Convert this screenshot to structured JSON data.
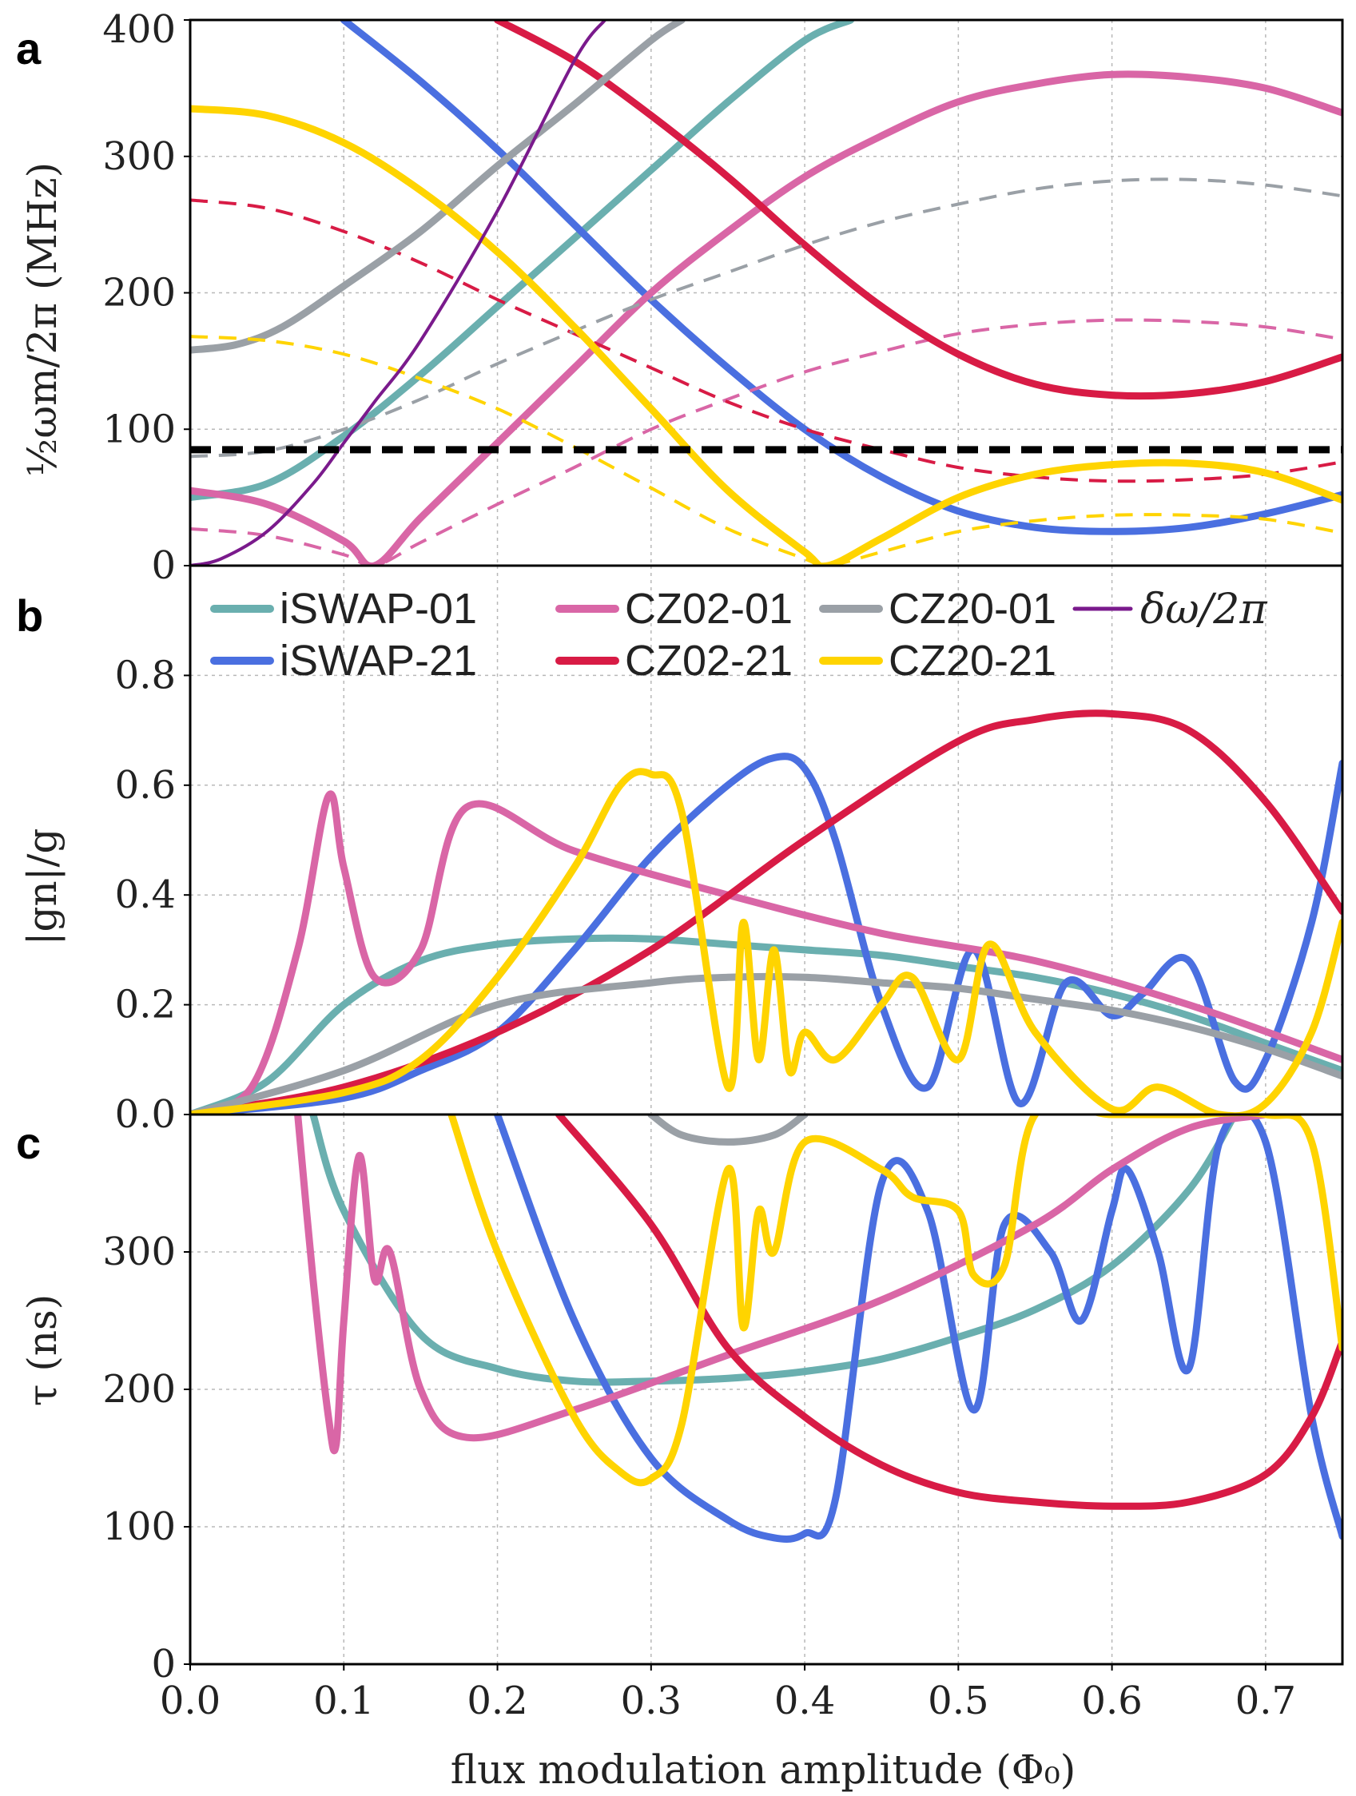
{
  "figure": {
    "xlabel": "flux modulation amplitude (Φ₀)",
    "x_ticks": [
      "0.0",
      "0.1",
      "0.2",
      "0.3",
      "0.4",
      "0.5",
      "0.6",
      "0.7"
    ]
  },
  "colors": {
    "iswap01": "#6aafaf",
    "iswap21": "#4a6fe0",
    "cz0201": "#d966a6",
    "cz0221": "#d81b45",
    "cz2001": "#9aa0a6",
    "cz2021": "#ffd400",
    "dw": "#7a1a8c",
    "threshold": "#000000"
  },
  "chart_data": [
    {
      "panel": "a",
      "type": "line",
      "ylabel": "½ωm/2π (MHz)",
      "xlim": [
        0,
        0.75
      ],
      "ylim": [
        0,
        400
      ],
      "y_ticks": [
        "0",
        "100",
        "200",
        "300",
        "400"
      ],
      "threshold_line": 85,
      "series": [
        {
          "name": "iSWAP-01",
          "key": "iswap01",
          "style": "solid",
          "x": [
            0,
            0.05,
            0.1,
            0.15,
            0.2,
            0.25,
            0.3,
            0.35,
            0.4,
            0.43
          ],
          "y": [
            50,
            60,
            95,
            140,
            190,
            240,
            290,
            340,
            385,
            400
          ]
        },
        {
          "name": "iSWAP-21",
          "key": "iswap21",
          "style": "solid",
          "x": [
            0.1,
            0.15,
            0.2,
            0.25,
            0.3,
            0.35,
            0.4,
            0.45,
            0.5,
            0.55,
            0.6,
            0.65,
            0.7,
            0.75
          ],
          "y": [
            400,
            355,
            305,
            250,
            195,
            145,
            100,
            65,
            40,
            28,
            25,
            28,
            38,
            52
          ]
        },
        {
          "name": "CZ02-01",
          "key": "cz0201",
          "style": "solid",
          "x": [
            0,
            0.05,
            0.1,
            0.12,
            0.15,
            0.2,
            0.25,
            0.3,
            0.35,
            0.4,
            0.45,
            0.5,
            0.55,
            0.6,
            0.65,
            0.7,
            0.75
          ],
          "y": [
            55,
            45,
            18,
            0,
            35,
            90,
            145,
            200,
            245,
            285,
            315,
            340,
            353,
            360,
            358,
            350,
            332
          ]
        },
        {
          "name": "CZ02-01 (dashed)",
          "key": "cz0201",
          "style": "dashed",
          "x": [
            0,
            0.05,
            0.1,
            0.12,
            0.15,
            0.2,
            0.25,
            0.3,
            0.35,
            0.4,
            0.45,
            0.5,
            0.55,
            0.6,
            0.65,
            0.7,
            0.75
          ],
          "y": [
            27,
            22,
            8,
            0,
            17,
            45,
            72,
            100,
            122,
            142,
            157,
            170,
            177,
            180,
            179,
            175,
            166
          ]
        },
        {
          "name": "CZ02-21",
          "key": "cz0221",
          "style": "solid",
          "x": [
            0.2,
            0.25,
            0.3,
            0.35,
            0.4,
            0.45,
            0.5,
            0.55,
            0.6,
            0.65,
            0.7,
            0.75
          ],
          "y": [
            400,
            370,
            330,
            285,
            235,
            190,
            155,
            133,
            125,
            126,
            135,
            153
          ]
        },
        {
          "name": "CZ02-21 (dashed)",
          "key": "cz0221",
          "style": "dashed",
          "x": [
            0,
            0.05,
            0.1,
            0.15,
            0.2,
            0.25,
            0.3,
            0.35,
            0.4,
            0.45,
            0.5,
            0.55,
            0.6,
            0.65,
            0.7,
            0.75
          ],
          "y": [
            268,
            262,
            245,
            222,
            195,
            170,
            145,
            120,
            100,
            85,
            72,
            65,
            62,
            63,
            67,
            76
          ]
        },
        {
          "name": "CZ20-01",
          "key": "cz2001",
          "style": "solid",
          "x": [
            0,
            0.03,
            0.06,
            0.1,
            0.15,
            0.2,
            0.25,
            0.3,
            0.32
          ],
          "y": [
            158,
            162,
            175,
            205,
            245,
            293,
            338,
            385,
            400
          ]
        },
        {
          "name": "CZ20-01 (dashed)",
          "key": "cz2001",
          "style": "dashed",
          "x": [
            0,
            0.05,
            0.1,
            0.15,
            0.2,
            0.25,
            0.3,
            0.35,
            0.4,
            0.45,
            0.5,
            0.55,
            0.6,
            0.65,
            0.7,
            0.75
          ],
          "y": [
            80,
            84,
            100,
            122,
            148,
            172,
            195,
            215,
            235,
            252,
            265,
            276,
            282,
            283,
            279,
            271
          ]
        },
        {
          "name": "CZ20-21",
          "key": "cz2021",
          "style": "solid",
          "x": [
            0,
            0.05,
            0.1,
            0.15,
            0.2,
            0.25,
            0.3,
            0.35,
            0.4,
            0.415,
            0.45,
            0.5,
            0.55,
            0.6,
            0.65,
            0.7,
            0.75
          ],
          "y": [
            335,
            330,
            310,
            275,
            230,
            175,
            115,
            55,
            10,
            0,
            20,
            50,
            67,
            74,
            75,
            68,
            48
          ]
        },
        {
          "name": "CZ20-21 (dashed)",
          "key": "cz2021",
          "style": "dashed",
          "x": [
            0,
            0.05,
            0.1,
            0.15,
            0.2,
            0.25,
            0.3,
            0.35,
            0.4,
            0.415,
            0.45,
            0.5,
            0.55,
            0.6,
            0.65,
            0.7,
            0.75
          ],
          "y": [
            168,
            165,
            155,
            137,
            115,
            87,
            57,
            27,
            5,
            0,
            10,
            25,
            33,
            37,
            37,
            34,
            24
          ]
        },
        {
          "name": "δω/2π",
          "key": "dw",
          "style": "thin",
          "x": [
            0,
            0.02,
            0.05,
            0.08,
            0.1,
            0.12,
            0.15,
            0.2,
            0.25,
            0.27
          ],
          "y": [
            0,
            5,
            25,
            60,
            90,
            120,
            165,
            260,
            370,
            400
          ]
        }
      ]
    },
    {
      "panel": "b",
      "type": "line",
      "ylabel": "|gn|/g",
      "xlim": [
        0,
        0.75
      ],
      "ylim": [
        0,
        1.0
      ],
      "y_ticks": [
        "0.0",
        "0.2",
        "0.4",
        "0.6",
        "0.8"
      ],
      "series": [
        {
          "name": "iSWAP-01",
          "key": "iswap01",
          "x": [
            0,
            0.05,
            0.1,
            0.15,
            0.2,
            0.25,
            0.3,
            0.35,
            0.4,
            0.45,
            0.5,
            0.55,
            0.6,
            0.65,
            0.7,
            0.75
          ],
          "y": [
            0,
            0.06,
            0.2,
            0.28,
            0.31,
            0.32,
            0.32,
            0.31,
            0.3,
            0.29,
            0.27,
            0.25,
            0.22,
            0.18,
            0.13,
            0.08
          ]
        },
        {
          "name": "iSWAP-21",
          "key": "iswap21",
          "x": [
            0,
            0.1,
            0.15,
            0.2,
            0.25,
            0.3,
            0.35,
            0.38,
            0.4,
            0.42,
            0.45,
            0.48,
            0.51,
            0.54,
            0.57,
            0.6,
            0.62,
            0.65,
            0.68,
            0.7,
            0.73,
            0.75
          ],
          "y": [
            0,
            0.03,
            0.08,
            0.15,
            0.3,
            0.47,
            0.6,
            0.65,
            0.63,
            0.5,
            0.2,
            0.05,
            0.3,
            0.02,
            0.24,
            0.18,
            0.22,
            0.28,
            0.06,
            0.1,
            0.35,
            0.64
          ]
        },
        {
          "name": "CZ02-01",
          "key": "cz0201",
          "x": [
            0,
            0.04,
            0.07,
            0.09,
            0.1,
            0.12,
            0.15,
            0.18,
            0.25,
            0.35,
            0.45,
            0.55,
            0.65,
            0.75
          ],
          "y": [
            0,
            0.05,
            0.3,
            0.58,
            0.45,
            0.25,
            0.3,
            0.56,
            0.48,
            0.4,
            0.33,
            0.28,
            0.2,
            0.1
          ]
        },
        {
          "name": "CZ02-21",
          "key": "cz0221",
          "x": [
            0,
            0.1,
            0.2,
            0.3,
            0.4,
            0.5,
            0.55,
            0.6,
            0.65,
            0.7,
            0.75
          ],
          "y": [
            0,
            0.05,
            0.15,
            0.3,
            0.5,
            0.68,
            0.72,
            0.73,
            0.7,
            0.57,
            0.37
          ]
        },
        {
          "name": "CZ20-01",
          "key": "cz2001",
          "x": [
            0,
            0.1,
            0.2,
            0.3,
            0.35,
            0.4,
            0.45,
            0.5,
            0.55,
            0.6,
            0.65,
            0.7,
            0.75
          ],
          "y": [
            0,
            0.08,
            0.2,
            0.24,
            0.25,
            0.25,
            0.24,
            0.23,
            0.21,
            0.19,
            0.16,
            0.12,
            0.07
          ]
        },
        {
          "name": "CZ20-21",
          "key": "cz2021",
          "x": [
            0,
            0.1,
            0.15,
            0.2,
            0.25,
            0.28,
            0.3,
            0.32,
            0.35,
            0.36,
            0.37,
            0.38,
            0.39,
            0.4,
            0.42,
            0.45,
            0.47,
            0.5,
            0.52,
            0.55,
            0.6,
            0.63,
            0.67,
            0.7,
            0.73,
            0.75
          ],
          "y": [
            0,
            0.04,
            0.1,
            0.25,
            0.45,
            0.6,
            0.62,
            0.55,
            0.05,
            0.35,
            0.1,
            0.3,
            0.08,
            0.15,
            0.1,
            0.2,
            0.25,
            0.1,
            0.31,
            0.15,
            0.01,
            0.05,
            0.0,
            0.02,
            0.15,
            0.35
          ]
        }
      ]
    },
    {
      "panel": "c",
      "type": "line",
      "ylabel": "τ (ns)",
      "xlim": [
        0,
        0.75
      ],
      "ylim": [
        0,
        400
      ],
      "y_ticks": [
        "0",
        "100",
        "200",
        "300"
      ],
      "series": [
        {
          "name": "iSWAP-01",
          "key": "iswap01",
          "x": [
            0.08,
            0.1,
            0.15,
            0.2,
            0.25,
            0.3,
            0.35,
            0.4,
            0.45,
            0.5,
            0.55,
            0.6,
            0.65,
            0.68
          ],
          "y": [
            400,
            330,
            240,
            215,
            206,
            206,
            208,
            213,
            222,
            238,
            258,
            290,
            345,
            400
          ]
        },
        {
          "name": "iSWAP-21",
          "key": "iswap21",
          "x": [
            0.2,
            0.25,
            0.3,
            0.35,
            0.38,
            0.4,
            0.42,
            0.45,
            0.48,
            0.51,
            0.53,
            0.56,
            0.58,
            0.6,
            0.61,
            0.63,
            0.65,
            0.67,
            0.7,
            0.73,
            0.75
          ],
          "y": [
            400,
            250,
            150,
            105,
            92,
            95,
            120,
            350,
            330,
            185,
            320,
            300,
            250,
            330,
            360,
            300,
            215,
            380,
            380,
            180,
            93
          ]
        },
        {
          "name": "CZ02-01",
          "key": "cz0201",
          "x": [
            0.07,
            0.08,
            0.09,
            0.095,
            0.1,
            0.11,
            0.12,
            0.13,
            0.15,
            0.18,
            0.25,
            0.35,
            0.45,
            0.55,
            0.6,
            0.65,
            0.7
          ],
          "y": [
            400,
            280,
            180,
            160,
            250,
            370,
            280,
            300,
            200,
            165,
            185,
            225,
            265,
            320,
            360,
            390,
            400
          ]
        },
        {
          "name": "CZ02-21",
          "key": "cz0221",
          "x": [
            0.24,
            0.3,
            0.35,
            0.4,
            0.45,
            0.5,
            0.55,
            0.6,
            0.65,
            0.7,
            0.73,
            0.75
          ],
          "y": [
            400,
            320,
            230,
            180,
            145,
            125,
            118,
            115,
            118,
            138,
            180,
            235
          ]
        },
        {
          "name": "CZ20-01",
          "key": "cz2001",
          "x": [
            0.3,
            0.32,
            0.35,
            0.38,
            0.4
          ],
          "y": [
            400,
            385,
            380,
            385,
            400
          ]
        },
        {
          "name": "CZ20-21",
          "key": "cz2021",
          "x": [
            0.17,
            0.2,
            0.25,
            0.28,
            0.3,
            0.32,
            0.35,
            0.36,
            0.37,
            0.38,
            0.4,
            0.45,
            0.47,
            0.5,
            0.51,
            0.53,
            0.55,
            0.6,
            0.65,
            0.7,
            0.73,
            0.75
          ],
          "y": [
            400,
            300,
            180,
            140,
            135,
            175,
            360,
            245,
            330,
            300,
            380,
            360,
            340,
            330,
            283,
            290,
            400,
            400,
            400,
            400,
            380,
            230
          ]
        }
      ]
    }
  ],
  "legend": {
    "items": [
      {
        "label": "iSWAP-01",
        "key": "iswap01"
      },
      {
        "label": "CZ02-01",
        "key": "cz0201"
      },
      {
        "label": "CZ20-01",
        "key": "cz2001"
      },
      {
        "label": "δω/2π",
        "key": "dw"
      },
      {
        "label": "iSWAP-21",
        "key": "iswap21"
      },
      {
        "label": "CZ02-21",
        "key": "cz0221"
      },
      {
        "label": "CZ20-21",
        "key": "cz2021"
      }
    ]
  }
}
